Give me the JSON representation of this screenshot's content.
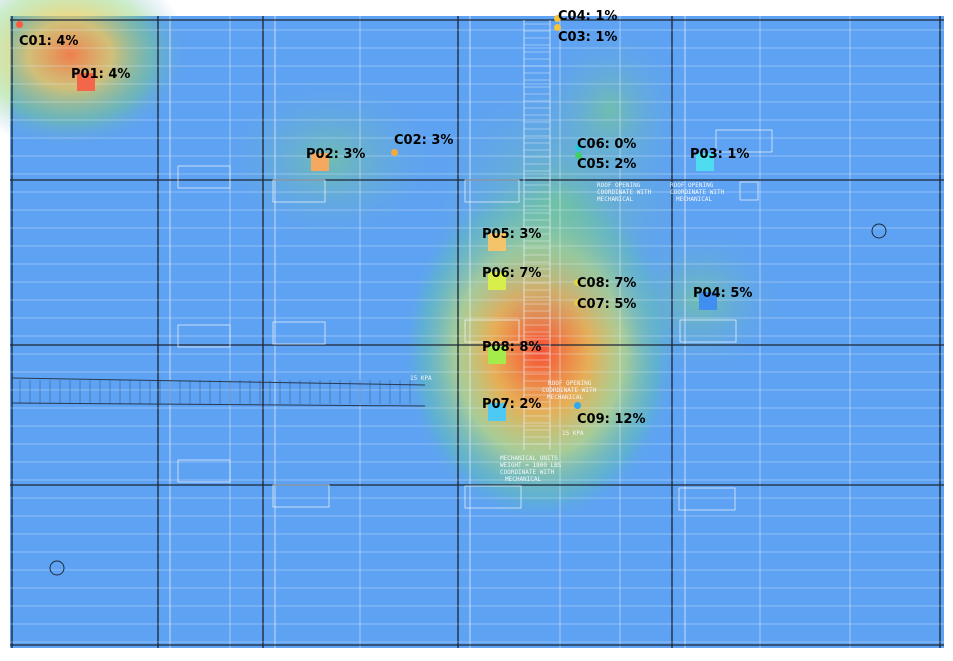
{
  "colors": {
    "background_blue": "#5ea2f3",
    "line_dark": "#3b4a5c",
    "line_light": "#d7e2ee",
    "label": "#000000"
  },
  "plan_labels": {
    "roof_opening_1": "ROOF OPENING",
    "roof_opening_1_sub": "COORDINATE WITH",
    "roof_opening_1_sub2": "MECHANICAL",
    "roof_opening_2": "ROOF OPENING",
    "roof_opening_2_sub": "COORDINATE WITH",
    "roof_opening_2_sub2": "MECHANICAL",
    "roof_opening_3": "ROOF OPENING",
    "roof_opening_3_sub": "COORDINATE WITH",
    "roof_opening_3_sub2": "MECHANICAL",
    "mech_unit": "MECHANICAL UNITS",
    "mech_unit_sub": "WEIGHT = 1800 LBS",
    "mech_unit_sub2": "COORDINATE WITH",
    "mech_unit_sub3": "MECHANICAL",
    "kpa_1": "15 KPA",
    "kpa_2": "15 KPA"
  },
  "points": [
    {
      "id": "C01",
      "label": "C01: 4%",
      "kind": "C",
      "value": 4,
      "color": "#ff5a3c"
    },
    {
      "id": "P01",
      "label": "P01: 4%",
      "kind": "P",
      "value": 4,
      "color": "#f2664a"
    },
    {
      "id": "C02",
      "label": "C02: 3%",
      "kind": "C",
      "value": 3,
      "color": "#f4a93a"
    },
    {
      "id": "P02",
      "label": "P02: 3%",
      "kind": "P",
      "value": 3,
      "color": "#f5a860"
    },
    {
      "id": "C03",
      "label": "C03: 1%",
      "kind": "C",
      "value": 1,
      "color": "#f5c43a"
    },
    {
      "id": "C04",
      "label": "C04: 1%",
      "kind": "C",
      "value": 1,
      "color": "#f5c43a"
    },
    {
      "id": "C05",
      "label": "C05: 2%",
      "kind": "C",
      "value": 2,
      "color": "#3fd06a"
    },
    {
      "id": "C06",
      "label": "C06: 0%",
      "kind": "C",
      "value": 0,
      "color": "#26c8e0"
    },
    {
      "id": "P03",
      "label": "P03: 1%",
      "kind": "P",
      "value": 1,
      "color": "#4fdcf0"
    },
    {
      "id": "P05",
      "label": "P05: 3%",
      "kind": "P",
      "value": 3,
      "color": "#f4c46a"
    },
    {
      "id": "P06",
      "label": "P06: 7%",
      "kind": "P",
      "value": 7,
      "color": "#d8ee4a"
    },
    {
      "id": "C08",
      "label": "C08: 7%",
      "kind": "C",
      "value": 7,
      "color": "#e0d640"
    },
    {
      "id": "C07",
      "label": "C07: 5%",
      "kind": "C",
      "value": 5,
      "color": "#e7c948"
    },
    {
      "id": "P04",
      "label": "P04: 5%",
      "kind": "P",
      "value": 5,
      "color": "#3f8ef0"
    },
    {
      "id": "P08",
      "label": "P08: 8%",
      "kind": "P",
      "value": 8,
      "color": "#a4ec4a"
    },
    {
      "id": "P07",
      "label": "P07: 2%",
      "kind": "P",
      "value": 2,
      "color": "#4ec8f4"
    },
    {
      "id": "C09",
      "label": "C09: 12%",
      "kind": "C",
      "value": 12,
      "color": "#2fa8f0"
    }
  ]
}
